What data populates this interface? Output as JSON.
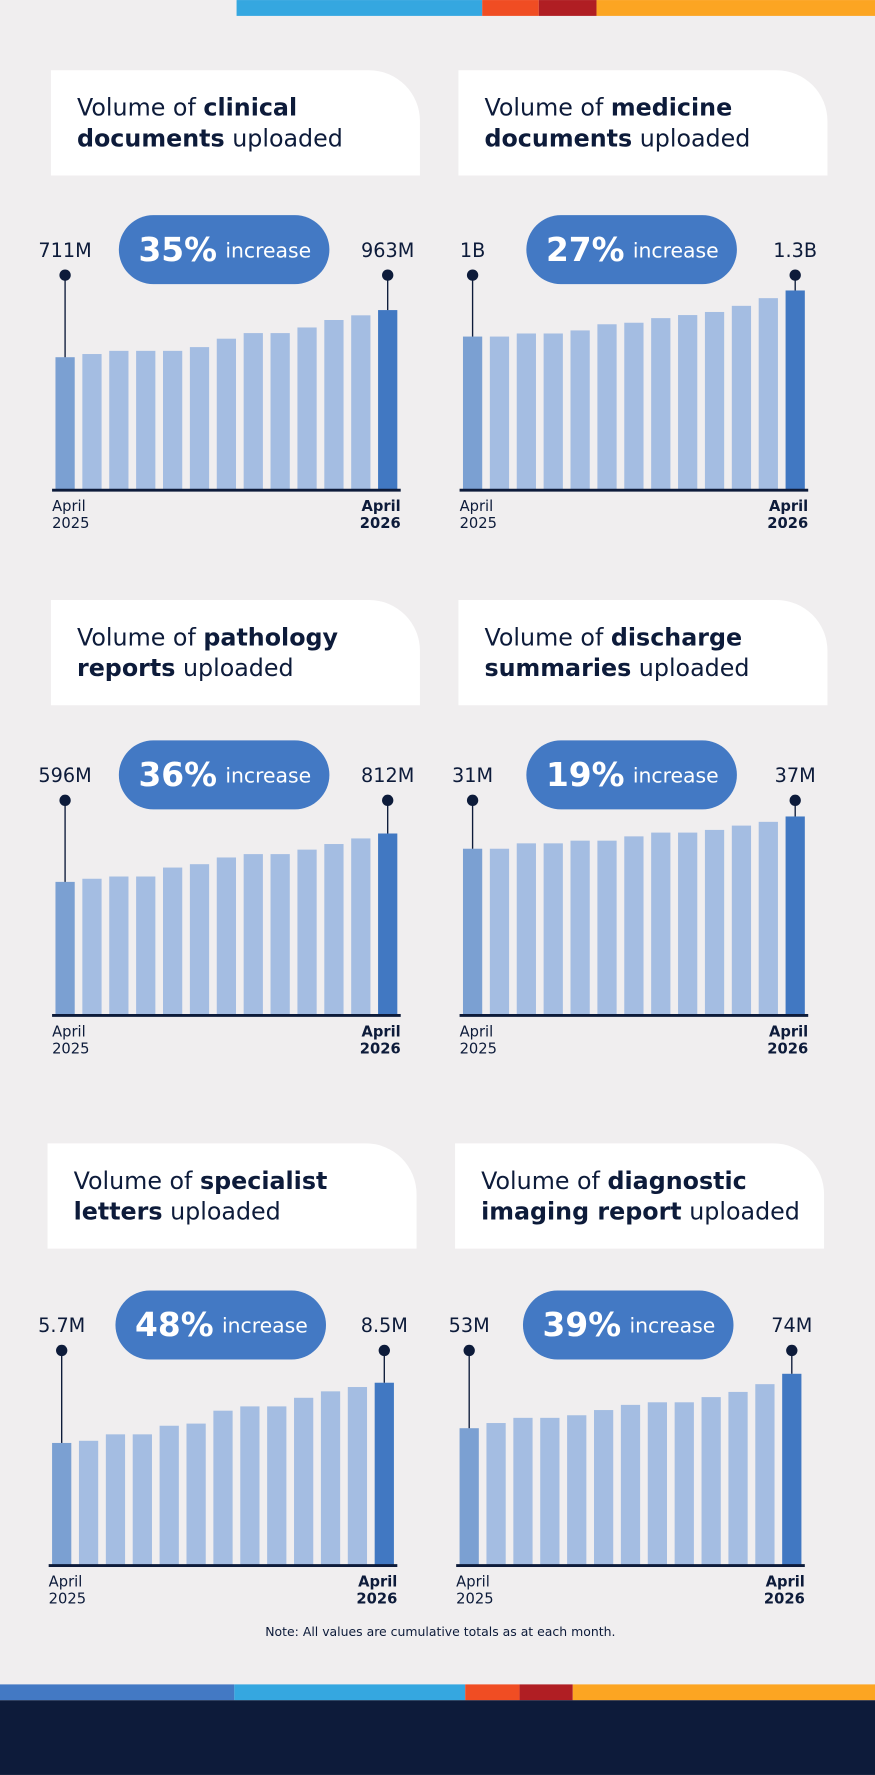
{
  "chart_data": [
    {
      "type": "bar",
      "title": {
        "lead": "Volume of",
        "bold": [
          "clinical",
          "documents"
        ],
        "tail": "uploaded"
      },
      "change": "35%",
      "change_text": "increase",
      "categories": [
        "April 2025",
        null,
        null,
        null,
        null,
        null,
        null,
        null,
        null,
        null,
        null,
        null,
        "April 2026"
      ],
      "values": [
        711,
        728,
        745,
        745,
        745,
        765,
        810,
        840,
        840,
        870,
        910,
        935,
        963
      ],
      "value_labels": [
        "711M",
        null,
        null,
        null,
        null,
        null,
        null,
        null,
        null,
        null,
        null,
        null,
        "963M"
      ],
      "ylim": [
        0,
        1150
      ],
      "color": "#a4bde2",
      "endpoint_colors": [
        "#7ba0d2",
        "#4178c2"
      ]
    },
    {
      "type": "bar",
      "title": {
        "lead": "Volume of",
        "bold": [
          "medicine",
          "documents"
        ],
        "tail": "uploaded"
      },
      "change": "27%",
      "change_text": "increase",
      "categories": [
        "April 2025",
        null,
        null,
        null,
        null,
        null,
        null,
        null,
        null,
        null,
        null,
        null,
        "April 2026"
      ],
      "values": [
        1,
        1,
        1.02,
        1.02,
        1.04,
        1.08,
        1.09,
        1.12,
        1.14,
        1.16,
        1.2,
        1.25,
        1.3
      ],
      "value_labels": [
        "1B",
        null,
        null,
        null,
        null,
        null,
        null,
        null,
        null,
        null,
        null,
        null,
        "1.3B"
      ],
      "ylim": [
        0,
        1.4
      ],
      "color": "#a4bde2",
      "endpoint_colors": [
        "#7ba0d2",
        "#4178c2"
      ]
    },
    {
      "type": "bar",
      "title": {
        "lead": "Volume of",
        "bold": [
          "pathology",
          "reports"
        ],
        "tail": "uploaded"
      },
      "change": "36%",
      "change_text": "increase",
      "categories": [
        "April 2025",
        null,
        null,
        null,
        null,
        null,
        null,
        null,
        null,
        null,
        null,
        null,
        "April 2026"
      ],
      "values": [
        596,
        610,
        620,
        620,
        660,
        675,
        705,
        720,
        720,
        740,
        765,
        790,
        812
      ],
      "value_labels": [
        "596M",
        null,
        null,
        null,
        null,
        null,
        null,
        null,
        null,
        null,
        null,
        null,
        "812M"
      ],
      "ylim": [
        0,
        960
      ],
      "color": "#a4bde2",
      "endpoint_colors": [
        "#7ba0d2",
        "#4178c2"
      ]
    },
    {
      "type": "bar",
      "title": {
        "lead": "Volume of",
        "bold": [
          "discharge",
          "summaries"
        ],
        "tail": "uploaded"
      },
      "change": "19%",
      "change_text": "increase",
      "categories": [
        "April 2025",
        null,
        null,
        null,
        null,
        null,
        null,
        null,
        null,
        null,
        null,
        null,
        "April 2026"
      ],
      "values": [
        31,
        31,
        32,
        32,
        32.5,
        32.5,
        33.3,
        34,
        34,
        34.5,
        35.3,
        36,
        37
      ],
      "value_labels": [
        "31M",
        null,
        null,
        null,
        null,
        null,
        null,
        null,
        null,
        null,
        null,
        null,
        "37M"
      ],
      "ylim": [
        0,
        40
      ],
      "color": "#a4bde2",
      "endpoint_colors": [
        "#7ba0d2",
        "#4178c2"
      ]
    },
    {
      "type": "bar",
      "title": {
        "lead": "Volume of",
        "bold": [
          "specialist",
          "letters"
        ],
        "tail": "uploaded"
      },
      "change": "48%",
      "change_text": "increase",
      "categories": [
        "April 2025",
        null,
        null,
        null,
        null,
        null,
        null,
        null,
        null,
        null,
        null,
        null,
        "April 2026"
      ],
      "values": [
        5.7,
        5.8,
        6.1,
        6.1,
        6.5,
        6.6,
        7.2,
        7.4,
        7.4,
        7.8,
        8.1,
        8.3,
        8.5
      ],
      "value_labels": [
        "5.7M",
        null,
        null,
        null,
        null,
        null,
        null,
        null,
        null,
        null,
        null,
        null,
        "8.5M"
      ],
      "ylim": [
        0,
        10
      ],
      "color": "#a4bde2",
      "endpoint_colors": [
        "#7ba0d2",
        "#4178c2"
      ]
    },
    {
      "type": "bar",
      "title": {
        "lead": "Volume of",
        "bold": [
          "diagnostic",
          "imaging report"
        ],
        "tail": "uploaded"
      },
      "change": "39%",
      "change_text": "increase",
      "categories": [
        "April 2025",
        null,
        null,
        null,
        null,
        null,
        null,
        null,
        null,
        null,
        null,
        null,
        "April 2026"
      ],
      "values": [
        53,
        55,
        57,
        57,
        58,
        60,
        62,
        63,
        63,
        65,
        67,
        70,
        74
      ],
      "value_labels": [
        "53M",
        null,
        null,
        null,
        null,
        null,
        null,
        null,
        null,
        null,
        null,
        null,
        "74M"
      ],
      "ylim": [
        0,
        83
      ],
      "color": "#a4bde2",
      "endpoint_colors": [
        "#7ba0d2",
        "#4178c2"
      ]
    }
  ],
  "note": "Note: All values are cumulative totals as at each month."
}
